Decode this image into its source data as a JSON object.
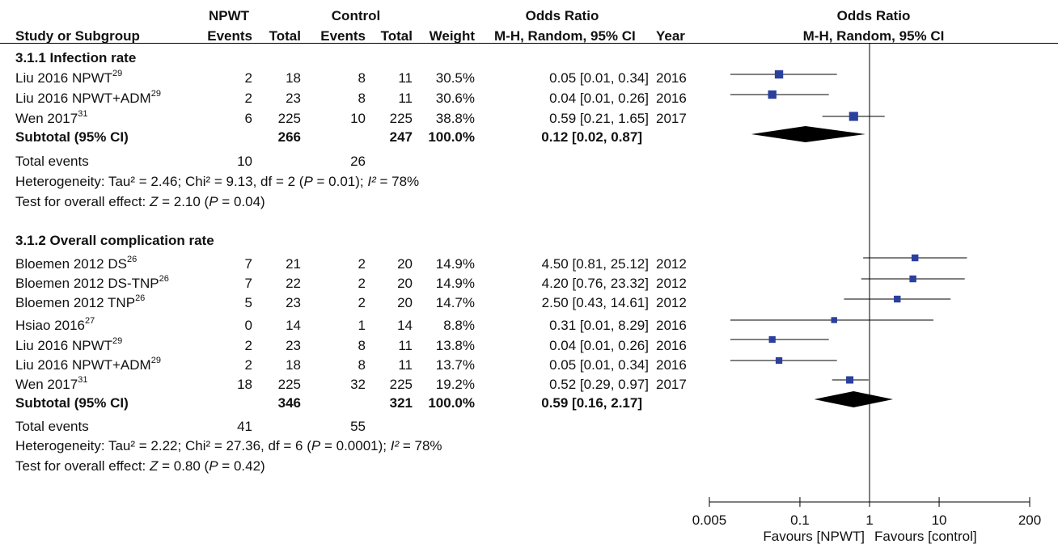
{
  "header": {
    "npwt_group": "NPWT",
    "control_group": "Control",
    "or_table": "Odds Ratio",
    "or_plot": "Odds Ratio",
    "col_study": "Study or Subgroup",
    "col_events1": "Events",
    "col_total1": "Total",
    "col_events2": "Events",
    "col_total2": "Total",
    "col_weight": "Weight",
    "col_method": "M-H, Random, 95% CI",
    "col_year": "Year",
    "plot_method": "M-H, Random, 95% CI"
  },
  "colors": {
    "marker": "#2b3f9e",
    "diamond": "#000000",
    "text": "#111111"
  },
  "subgroups": [
    {
      "title": "3.1.1 Infection rate",
      "studies": [
        {
          "name": "Liu 2016 NPWT",
          "ref": "29",
          "e1": "2",
          "t1": "18",
          "e2": "8",
          "t2": "11",
          "weight": "30.5%",
          "ci": "0.05 [0.01, 0.34]",
          "year": "2016"
        },
        {
          "name": "Liu 2016 NPWT+ADM",
          "ref": "29",
          "e1": "2",
          "t1": "23",
          "e2": "8",
          "t2": "11",
          "weight": "30.6%",
          "ci": "0.04 [0.01, 0.26]",
          "year": "2016"
        },
        {
          "name": "Wen 2017",
          "ref": "31",
          "e1": "6",
          "t1": "225",
          "e2": "10",
          "t2": "225",
          "weight": "38.8%",
          "ci": "0.59 [0.21, 1.65]",
          "year": "2017"
        }
      ],
      "subtotal": {
        "label": "Subtotal (95% CI)",
        "t1": "266",
        "t2": "247",
        "weight": "100.0%",
        "ci": "0.12 [0.02, 0.87]"
      },
      "total_events": {
        "label": "Total events",
        "e1": "10",
        "e2": "26"
      },
      "heterogeneity": {
        "prefix": "Heterogeneity: Tau² = 2.46; Chi² = 9.13, df = 2 (",
        "p": "P",
        "mid": " = 0.01); ",
        "i2": "I²",
        "suffix": " = 78%"
      },
      "overall": {
        "prefix": "Test for overall effect: ",
        "z": "Z",
        "mid": " = 2.10 (",
        "p": "P",
        "suffix": " = 0.04)"
      }
    },
    {
      "title": "3.1.2 Overall complication rate",
      "studies": [
        {
          "name": "Bloemen 2012 DS",
          "ref": "26",
          "e1": "7",
          "t1": "21",
          "e2": "2",
          "t2": "20",
          "weight": "14.9%",
          "ci": "4.50 [0.81, 25.12]",
          "year": "2012"
        },
        {
          "name": "Bloemen 2012 DS-TNP",
          "ref": "26",
          "e1": "7",
          "t1": "22",
          "e2": "2",
          "t2": "20",
          "weight": "14.9%",
          "ci": "4.20 [0.76, 23.32]",
          "year": "2012"
        },
        {
          "name": "Bloemen 2012 TNP",
          "ref": "26",
          "e1": "5",
          "t1": "23",
          "e2": "2",
          "t2": "20",
          "weight": "14.7%",
          "ci": "2.50 [0.43, 14.61]",
          "year": "2012"
        },
        {
          "name": "Hsiao 2016",
          "ref": "27",
          "e1": "0",
          "t1": "14",
          "e2": "1",
          "t2": "14",
          "weight": "8.8%",
          "ci": "0.31 [0.01, 8.29]",
          "year": "2016"
        },
        {
          "name": "Liu 2016 NPWT",
          "ref": "29",
          "e1": "2",
          "t1": "23",
          "e2": "8",
          "t2": "11",
          "weight": "13.8%",
          "ci": "0.04 [0.01, 0.26]",
          "year": "2016"
        },
        {
          "name": "Liu 2016 NPWT+ADM",
          "ref": "29",
          "e1": "2",
          "t1": "18",
          "e2": "8",
          "t2": "11",
          "weight": "13.7%",
          "ci": "0.05 [0.01, 0.34]",
          "year": "2016"
        },
        {
          "name": "Wen 2017",
          "ref": "31",
          "e1": "18",
          "t1": "225",
          "e2": "32",
          "t2": "225",
          "weight": "19.2%",
          "ci": "0.52 [0.29, 0.97]",
          "year": "2017"
        }
      ],
      "subtotal": {
        "label": "Subtotal (95% CI)",
        "t1": "346",
        "t2": "321",
        "weight": "100.0%",
        "ci": "0.59 [0.16, 2.17]"
      },
      "total_events": {
        "label": "Total events",
        "e1": "41",
        "e2": "55"
      },
      "heterogeneity": {
        "prefix": "Heterogeneity: Tau² = 2.22; Chi² = 27.36, df = 6 (",
        "p": "P",
        "mid": " = 0.0001); ",
        "i2": "I²",
        "suffix": " = 78%"
      },
      "overall": {
        "prefix": "Test for overall effect: ",
        "z": "Z",
        "mid": " = 0.80 (",
        "p": "P",
        "suffix": " = 0.42)"
      }
    }
  ],
  "chart_data": {
    "type": "forest",
    "scale": "log",
    "xlim": [
      0.005,
      200
    ],
    "ticks": [
      0.005,
      0.1,
      1,
      10,
      200
    ],
    "tick_labels": [
      "0.005",
      "0.1",
      "1",
      "10",
      "200"
    ],
    "reference_line": 1,
    "favours_left": "Favours [NPWT]",
    "favours_right": "Favours [control]",
    "subgroups": [
      {
        "points": [
          {
            "or": 0.05,
            "lo": 0.01,
            "hi": 0.34,
            "weight": 30.5
          },
          {
            "or": 0.04,
            "lo": 0.01,
            "hi": 0.26,
            "weight": 30.6
          },
          {
            "or": 0.59,
            "lo": 0.21,
            "hi": 1.65,
            "weight": 38.8
          }
        ],
        "diamond": {
          "or": 0.12,
          "lo": 0.02,
          "hi": 0.87
        }
      },
      {
        "points": [
          {
            "or": 4.5,
            "lo": 0.81,
            "hi": 25.12,
            "weight": 14.9
          },
          {
            "or": 4.2,
            "lo": 0.76,
            "hi": 23.32,
            "weight": 14.9
          },
          {
            "or": 2.5,
            "lo": 0.43,
            "hi": 14.61,
            "weight": 14.7
          },
          {
            "or": 0.31,
            "lo": 0.01,
            "hi": 8.29,
            "weight": 8.8
          },
          {
            "or": 0.04,
            "lo": 0.01,
            "hi": 0.26,
            "weight": 13.8
          },
          {
            "or": 0.05,
            "lo": 0.01,
            "hi": 0.34,
            "weight": 13.7
          },
          {
            "or": 0.52,
            "lo": 0.29,
            "hi": 0.97,
            "weight": 19.2
          }
        ],
        "diamond": {
          "or": 0.59,
          "lo": 0.16,
          "hi": 2.17
        }
      }
    ]
  }
}
